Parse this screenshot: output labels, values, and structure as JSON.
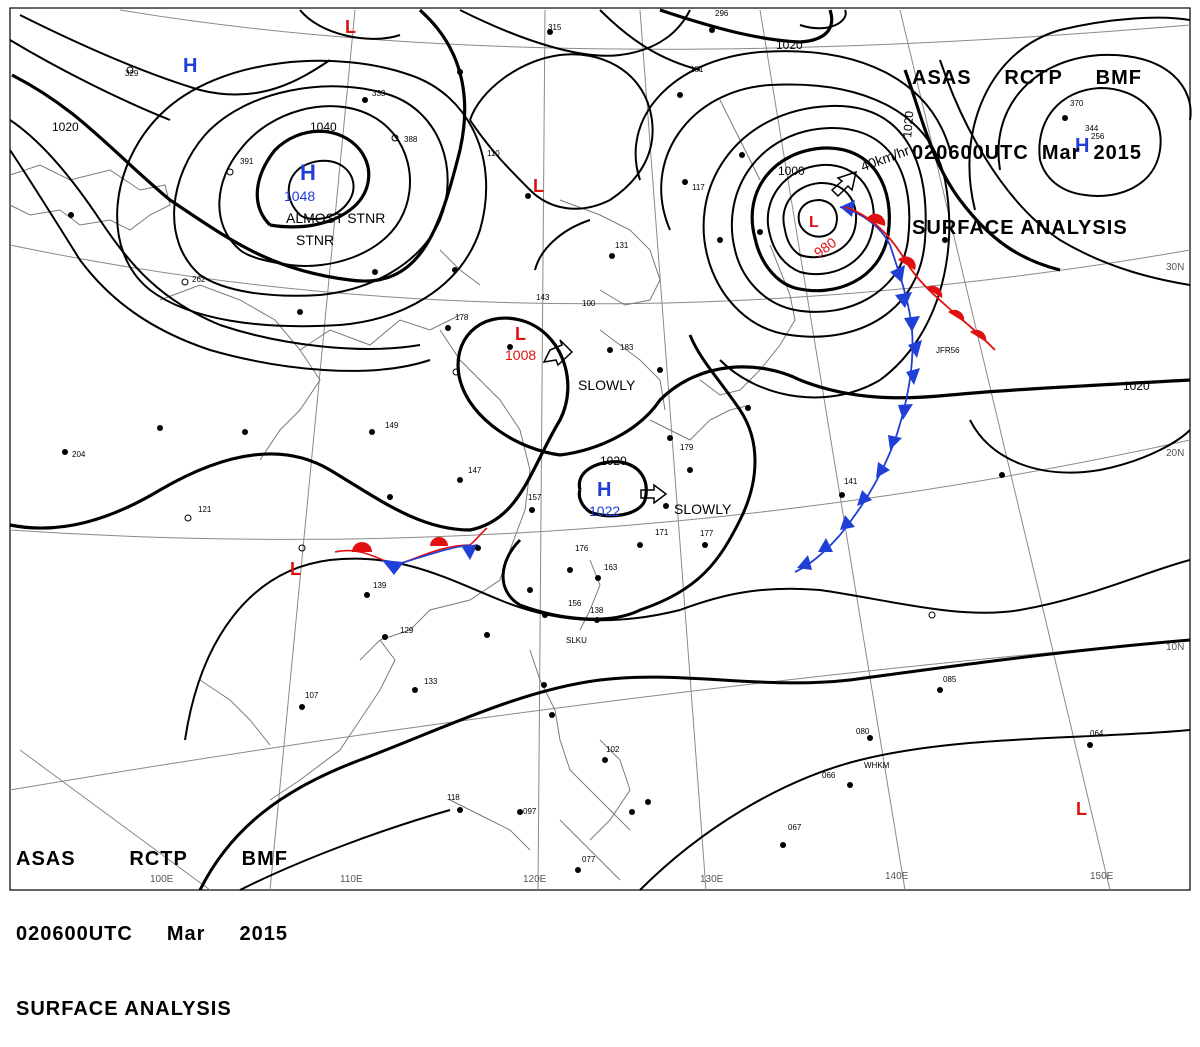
{
  "header": {
    "line1": [
      "ASAS",
      "RCTP",
      "BMF"
    ],
    "line2": [
      "020600UTC",
      "Mar",
      "2015"
    ],
    "line3": "SURFACE ANALYSIS"
  },
  "colors": {
    "isobar": "#000000",
    "high": "#1f3fd6",
    "low": "#e01010",
    "cold_front": "#1f3fd6",
    "warm_front": "#e01010",
    "grid": "#8a8a8a",
    "coast": "#7a7a7a"
  },
  "pressure_systems": [
    {
      "type": "H",
      "value": "1048",
      "note": "ALMOST STNR"
    },
    {
      "type": "L",
      "value": "1008",
      "note": "SLOWLY"
    },
    {
      "type": "H",
      "value": "1022",
      "note": "SLOWLY"
    },
    {
      "type": "L",
      "value": "980",
      "note": "40km/hr"
    },
    {
      "type": "H",
      "value": ""
    },
    {
      "type": "H",
      "value": ""
    },
    {
      "type": "L",
      "value": ""
    },
    {
      "type": "L",
      "value": ""
    },
    {
      "type": "L",
      "value": ""
    }
  ],
  "isobar_labels": [
    "1040",
    "1020",
    "1020",
    "1020",
    "1020",
    "1000",
    "1020",
    "1020",
    "1020"
  ],
  "longitude_labels": [
    "100E",
    "110E",
    "120E",
    "130E",
    "140E",
    "150E"
  ],
  "latitude_labels": [
    "30N",
    "20N",
    "10N"
  ],
  "station_labels": [
    "SLKU",
    "WHKM",
    "JFR56"
  ],
  "station_numbers": [
    "315",
    "296",
    "329",
    "333",
    "388",
    "391",
    "110",
    "181",
    "117",
    "131",
    "143",
    "100",
    "178",
    "183",
    "179",
    "149",
    "147",
    "157",
    "141",
    "176",
    "163",
    "156",
    "138",
    "139",
    "129",
    "133",
    "107",
    "118",
    "097",
    "077",
    "067",
    "066",
    "085",
    "064",
    "080",
    "102",
    "177",
    "171",
    "204",
    "121",
    "262",
    "344",
    "256",
    "370"
  ]
}
